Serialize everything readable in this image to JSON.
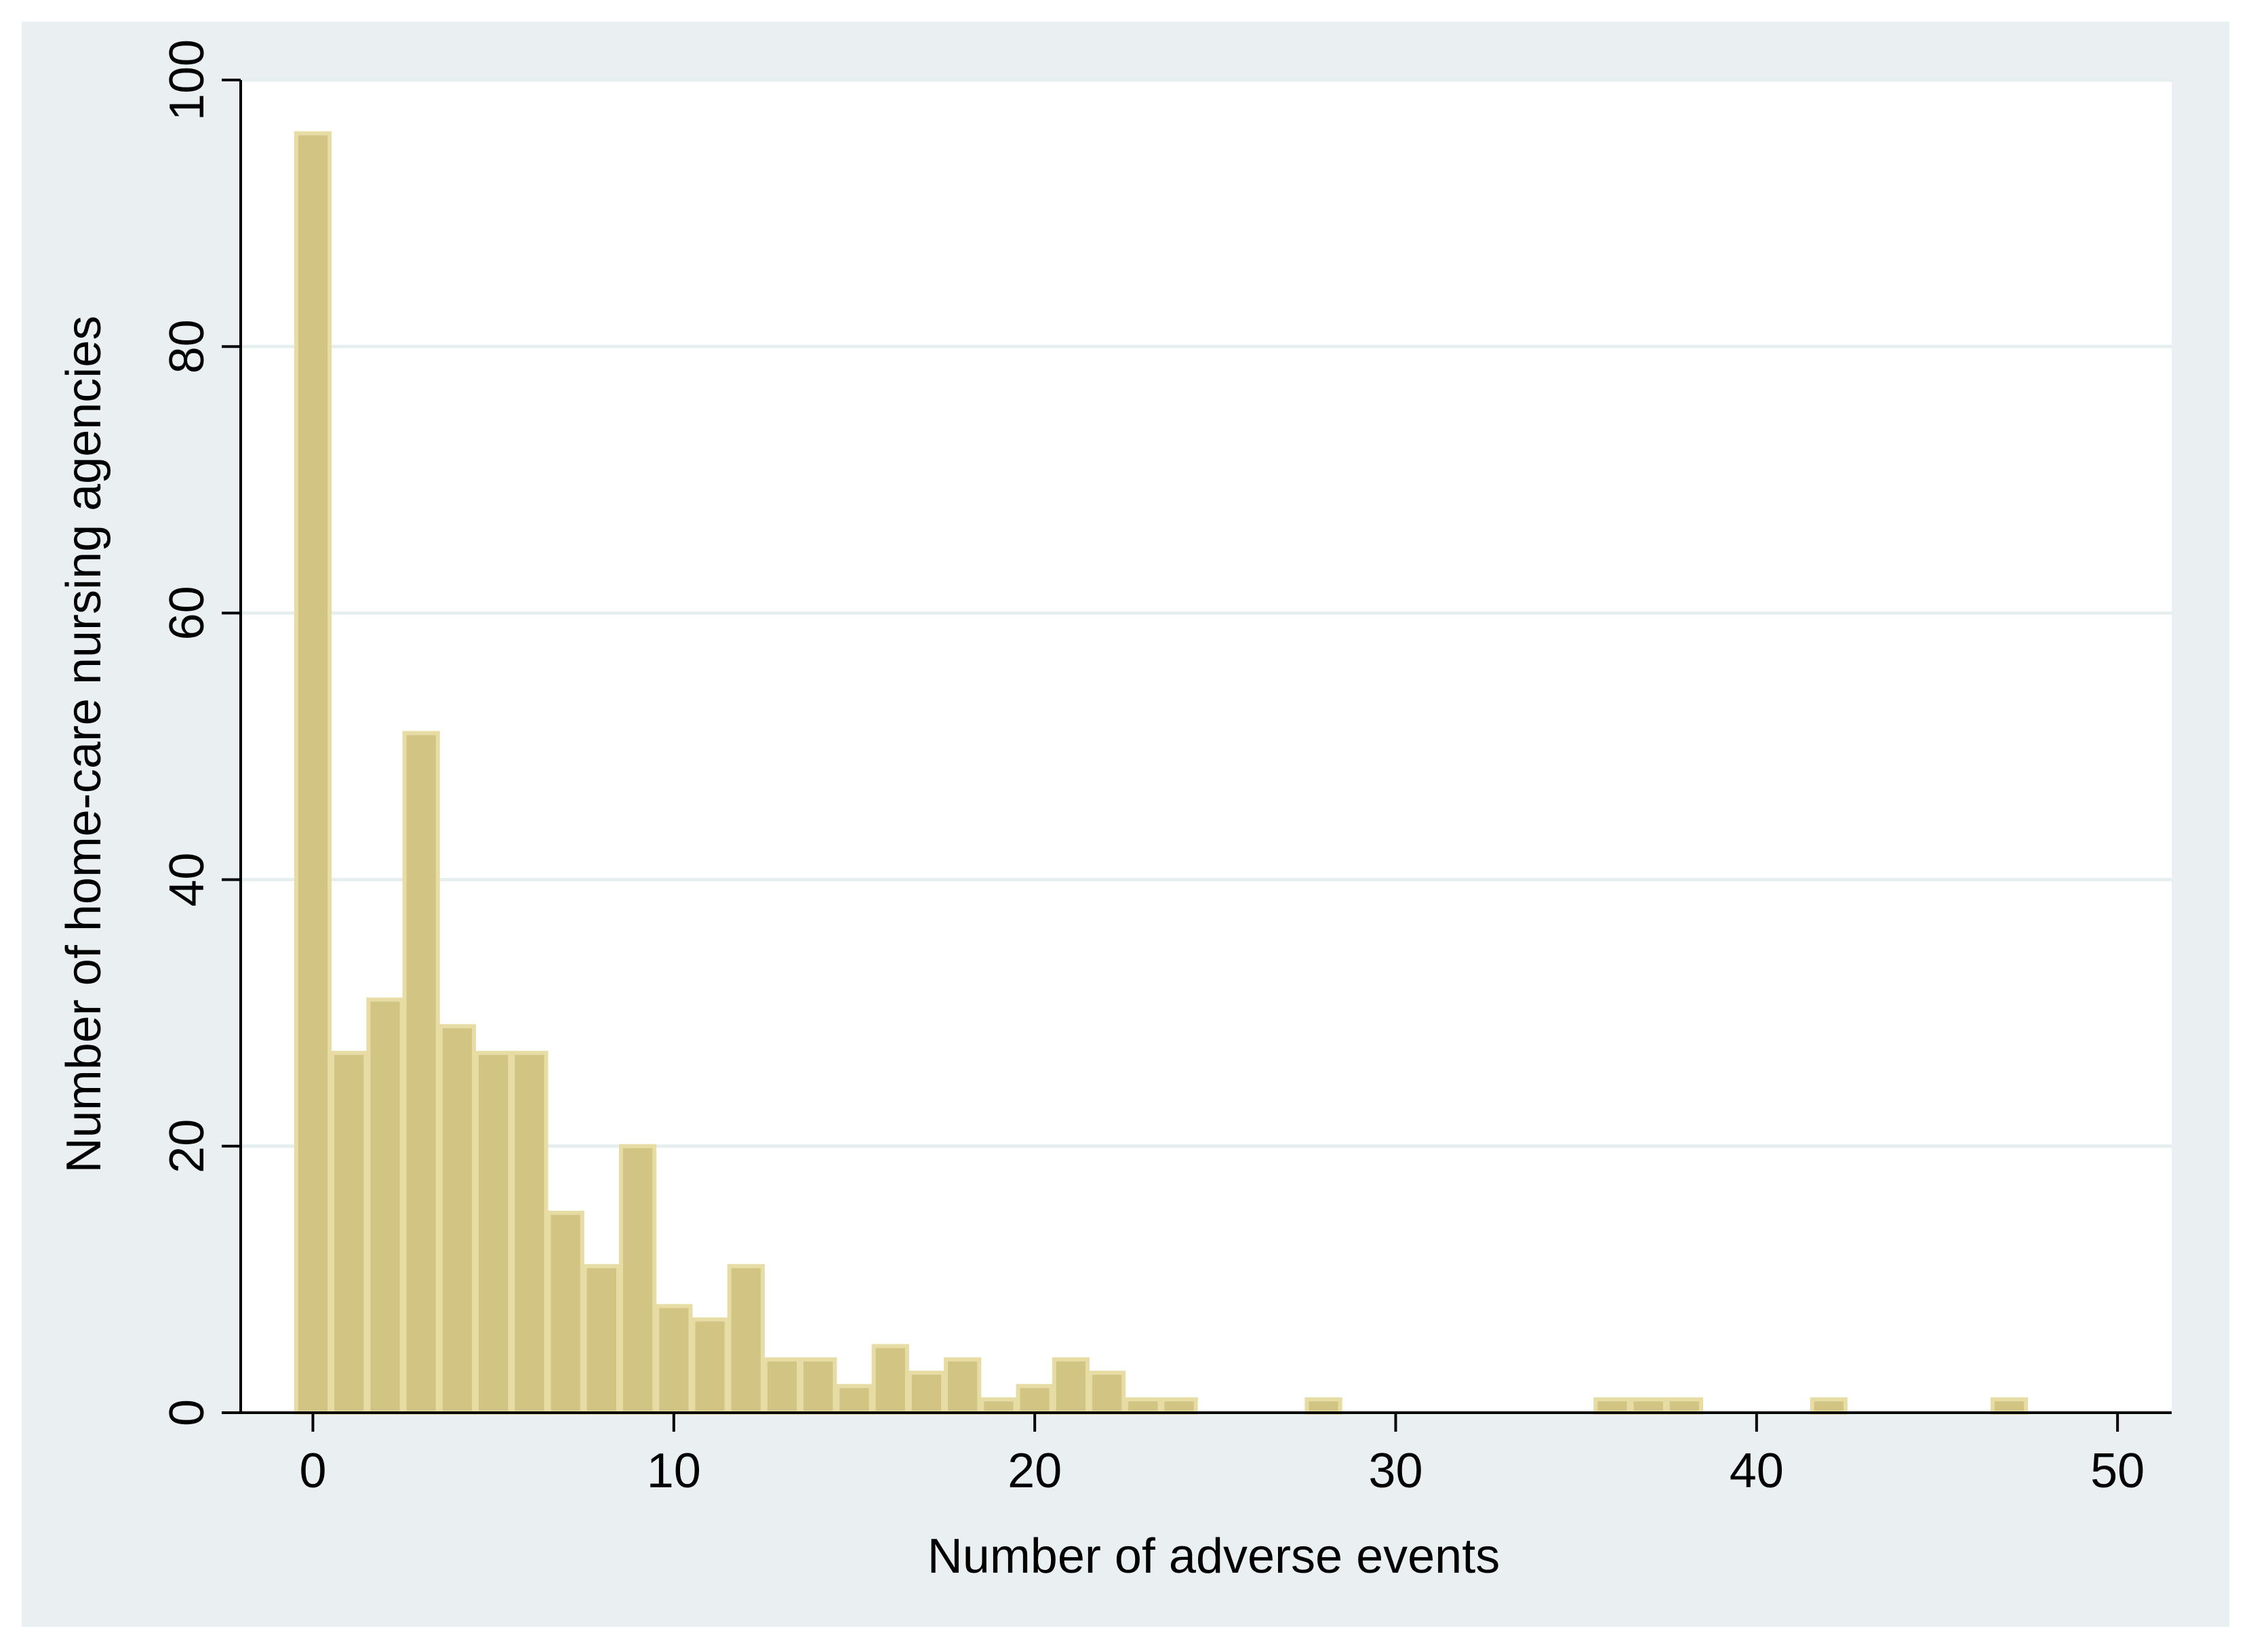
{
  "chart_data": {
    "type": "bar",
    "title": "",
    "xlabel": "Number of adverse events",
    "ylabel": "Number of home-care nursing agencies",
    "xlim": [
      -2,
      51.5
    ],
    "ylim": [
      0,
      100
    ],
    "xticks": [
      0,
      10,
      20,
      30,
      40,
      50
    ],
    "yticks": [
      0,
      20,
      40,
      60,
      80,
      100
    ],
    "grid": true,
    "legend": "none",
    "bin_width": 1,
    "bins": [
      {
        "x": 0,
        "value": 96
      },
      {
        "x": 1,
        "value": 27
      },
      {
        "x": 2,
        "value": 31
      },
      {
        "x": 3,
        "value": 51
      },
      {
        "x": 4,
        "value": 29
      },
      {
        "x": 5,
        "value": 27
      },
      {
        "x": 6,
        "value": 27
      },
      {
        "x": 7,
        "value": 15
      },
      {
        "x": 8,
        "value": 11
      },
      {
        "x": 9,
        "value": 20
      },
      {
        "x": 10,
        "value": 8
      },
      {
        "x": 11,
        "value": 7
      },
      {
        "x": 12,
        "value": 11
      },
      {
        "x": 13,
        "value": 4
      },
      {
        "x": 14,
        "value": 4
      },
      {
        "x": 15,
        "value": 2
      },
      {
        "x": 16,
        "value": 5
      },
      {
        "x": 17,
        "value": 3
      },
      {
        "x": 18,
        "value": 4
      },
      {
        "x": 19,
        "value": 1
      },
      {
        "x": 20,
        "value": 2
      },
      {
        "x": 21,
        "value": 4
      },
      {
        "x": 22,
        "value": 3
      },
      {
        "x": 23,
        "value": 1
      },
      {
        "x": 24,
        "value": 1
      },
      {
        "x": 28,
        "value": 1
      },
      {
        "x": 36,
        "value": 1
      },
      {
        "x": 37,
        "value": 1
      },
      {
        "x": 38,
        "value": 1
      },
      {
        "x": 42,
        "value": 1
      },
      {
        "x": 47,
        "value": 1
      }
    ],
    "colors": {
      "outer_background": "#eaf0f2",
      "plot_background": "#ffffff",
      "bar_fill": "#d2c584",
      "bar_edge": "#e6dca4",
      "gridline": "#e7eeef",
      "axis": "#000000"
    }
  }
}
